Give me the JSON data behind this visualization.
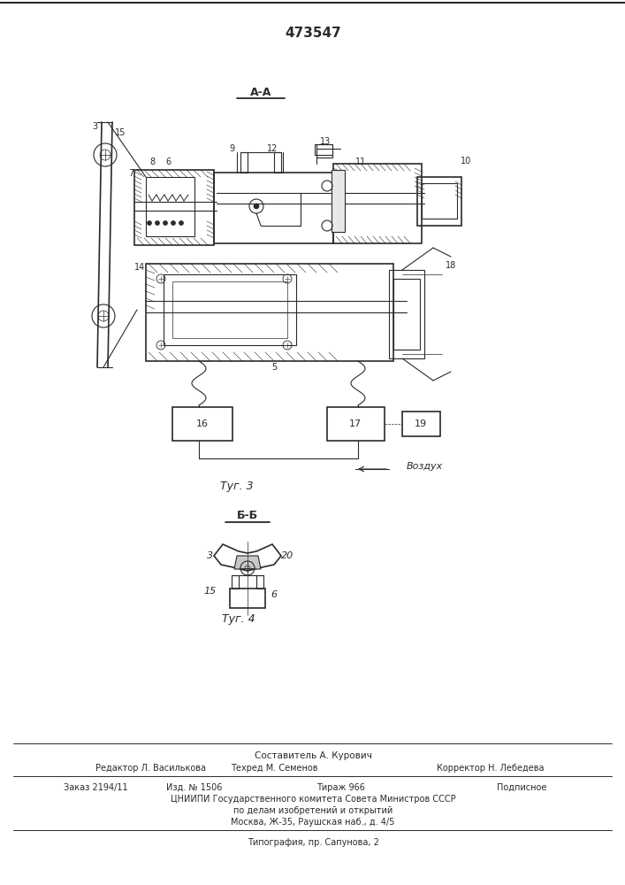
{
  "patent_number": "473547",
  "bg": "#ffffff",
  "lc": "#2a2a2a",
  "fig3_caption": "Τуг. 3",
  "fig4_caption": "Τуг. 4",
  "aa_label": "A-A",
  "bb_label": "Б-Б",
  "vozduh": "Воздух",
  "label_3a": "3",
  "label_15a": "15",
  "label_7": "7",
  "label_8": "8",
  "label_6a": "6",
  "label_9": "9",
  "label_12": "12",
  "label_13": "13",
  "label_11": "11",
  "label_10": "10",
  "label_14": "14",
  "label_5": "5",
  "label_18": "18",
  "label_16": "16",
  "label_17": "17",
  "label_19": "19",
  "label_3b": "3",
  "label_20": "20",
  "label_15b": "15",
  "label_6b": "6",
  "footer_sostavitel": "Составитель А. Курович",
  "footer_editor": "Редактор Л. Василькова",
  "footer_tech": "Техред М. Семенов",
  "footer_corr": "Корректор Н. Лебедева",
  "footer_order": "Заказ 2194/11",
  "footer_izd": "Изд. № 1506",
  "footer_tirazh": "Тираж 966",
  "footer_podp": "Подписное",
  "footer_cn1": "ЦНИИПИ Государственного комитета Совета Министров СССР",
  "footer_cn2": "по делам изобретений и открытий",
  "footer_addr": "Москва, Ж-35, Раушская наб., д. 4/5",
  "footer_tip": "Типография, пр. Сапунова, 2"
}
